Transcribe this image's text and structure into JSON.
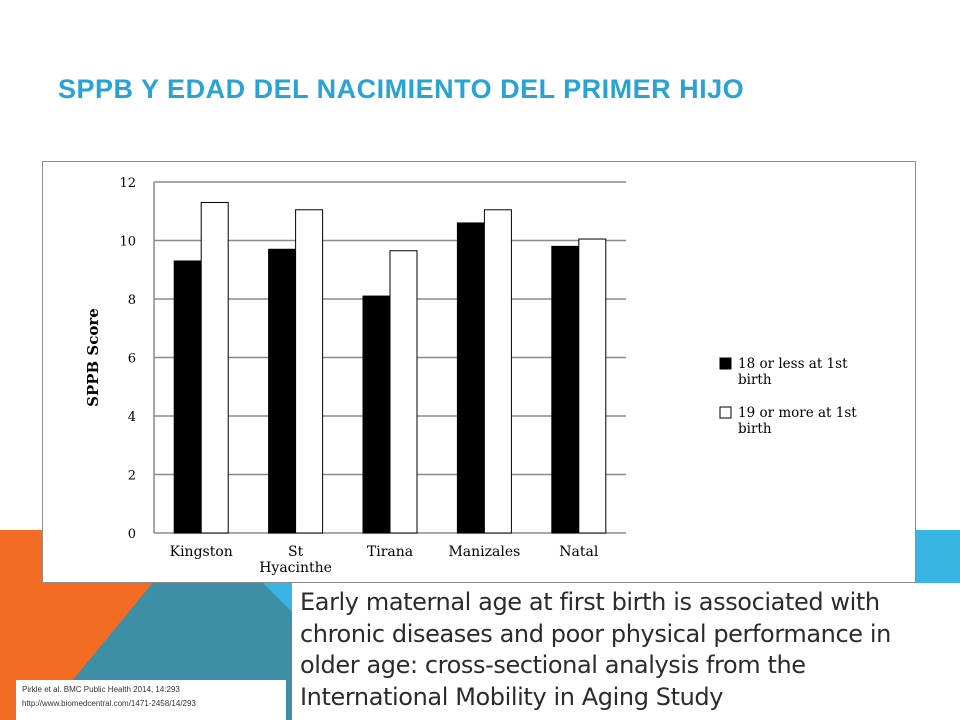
{
  "slide": {
    "title": "SPPB Y EDAD DEL NACIMIENTO DEL PRIMER HIJO",
    "title_color": "#29a3d4",
    "accent_orange": "#f36c24",
    "accent_teal": "#3d8fa6",
    "accent_blue": "#39b5e4"
  },
  "citation": {
    "line1": "Pirkle et al. BMC Public Health 2014, 14:293",
    "line2": "http://www.biomedcentral.com/1471-2458/14/293"
  },
  "paper": {
    "title": "Early maternal age at first birth is associated with chronic diseases and poor physical performance in older age: cross-sectional analysis from the International Mobility in Aging Study"
  },
  "chart_data": {
    "type": "bar",
    "categories": [
      "Kingston",
      "St Hyacinthe",
      "Tirana",
      "Manizales",
      "Natal"
    ],
    "category_lines": [
      [
        "Kingston"
      ],
      [
        "St",
        "Hyacinthe"
      ],
      [
        "Tirana"
      ],
      [
        "Manizales"
      ],
      [
        "Natal"
      ]
    ],
    "series": [
      {
        "name": "18 or less at 1st birth",
        "legend_lines": [
          "18 or less at 1st",
          "birth"
        ],
        "color": "#000000",
        "values": [
          9.3,
          9.7,
          8.1,
          10.6,
          9.8
        ]
      },
      {
        "name": "19 or more at 1st birth",
        "legend_lines": [
          "19 or more at 1st",
          "birth"
        ],
        "color": "#ffffff",
        "values": [
          11.3,
          11.05,
          9.65,
          11.05,
          10.05
        ]
      }
    ],
    "ylabel": "SPPB Score",
    "xlabel": "",
    "ylim": [
      0,
      12
    ],
    "yticks": [
      0,
      2,
      4,
      6,
      8,
      10,
      12
    ],
    "grid": true,
    "legend_position": "right"
  }
}
